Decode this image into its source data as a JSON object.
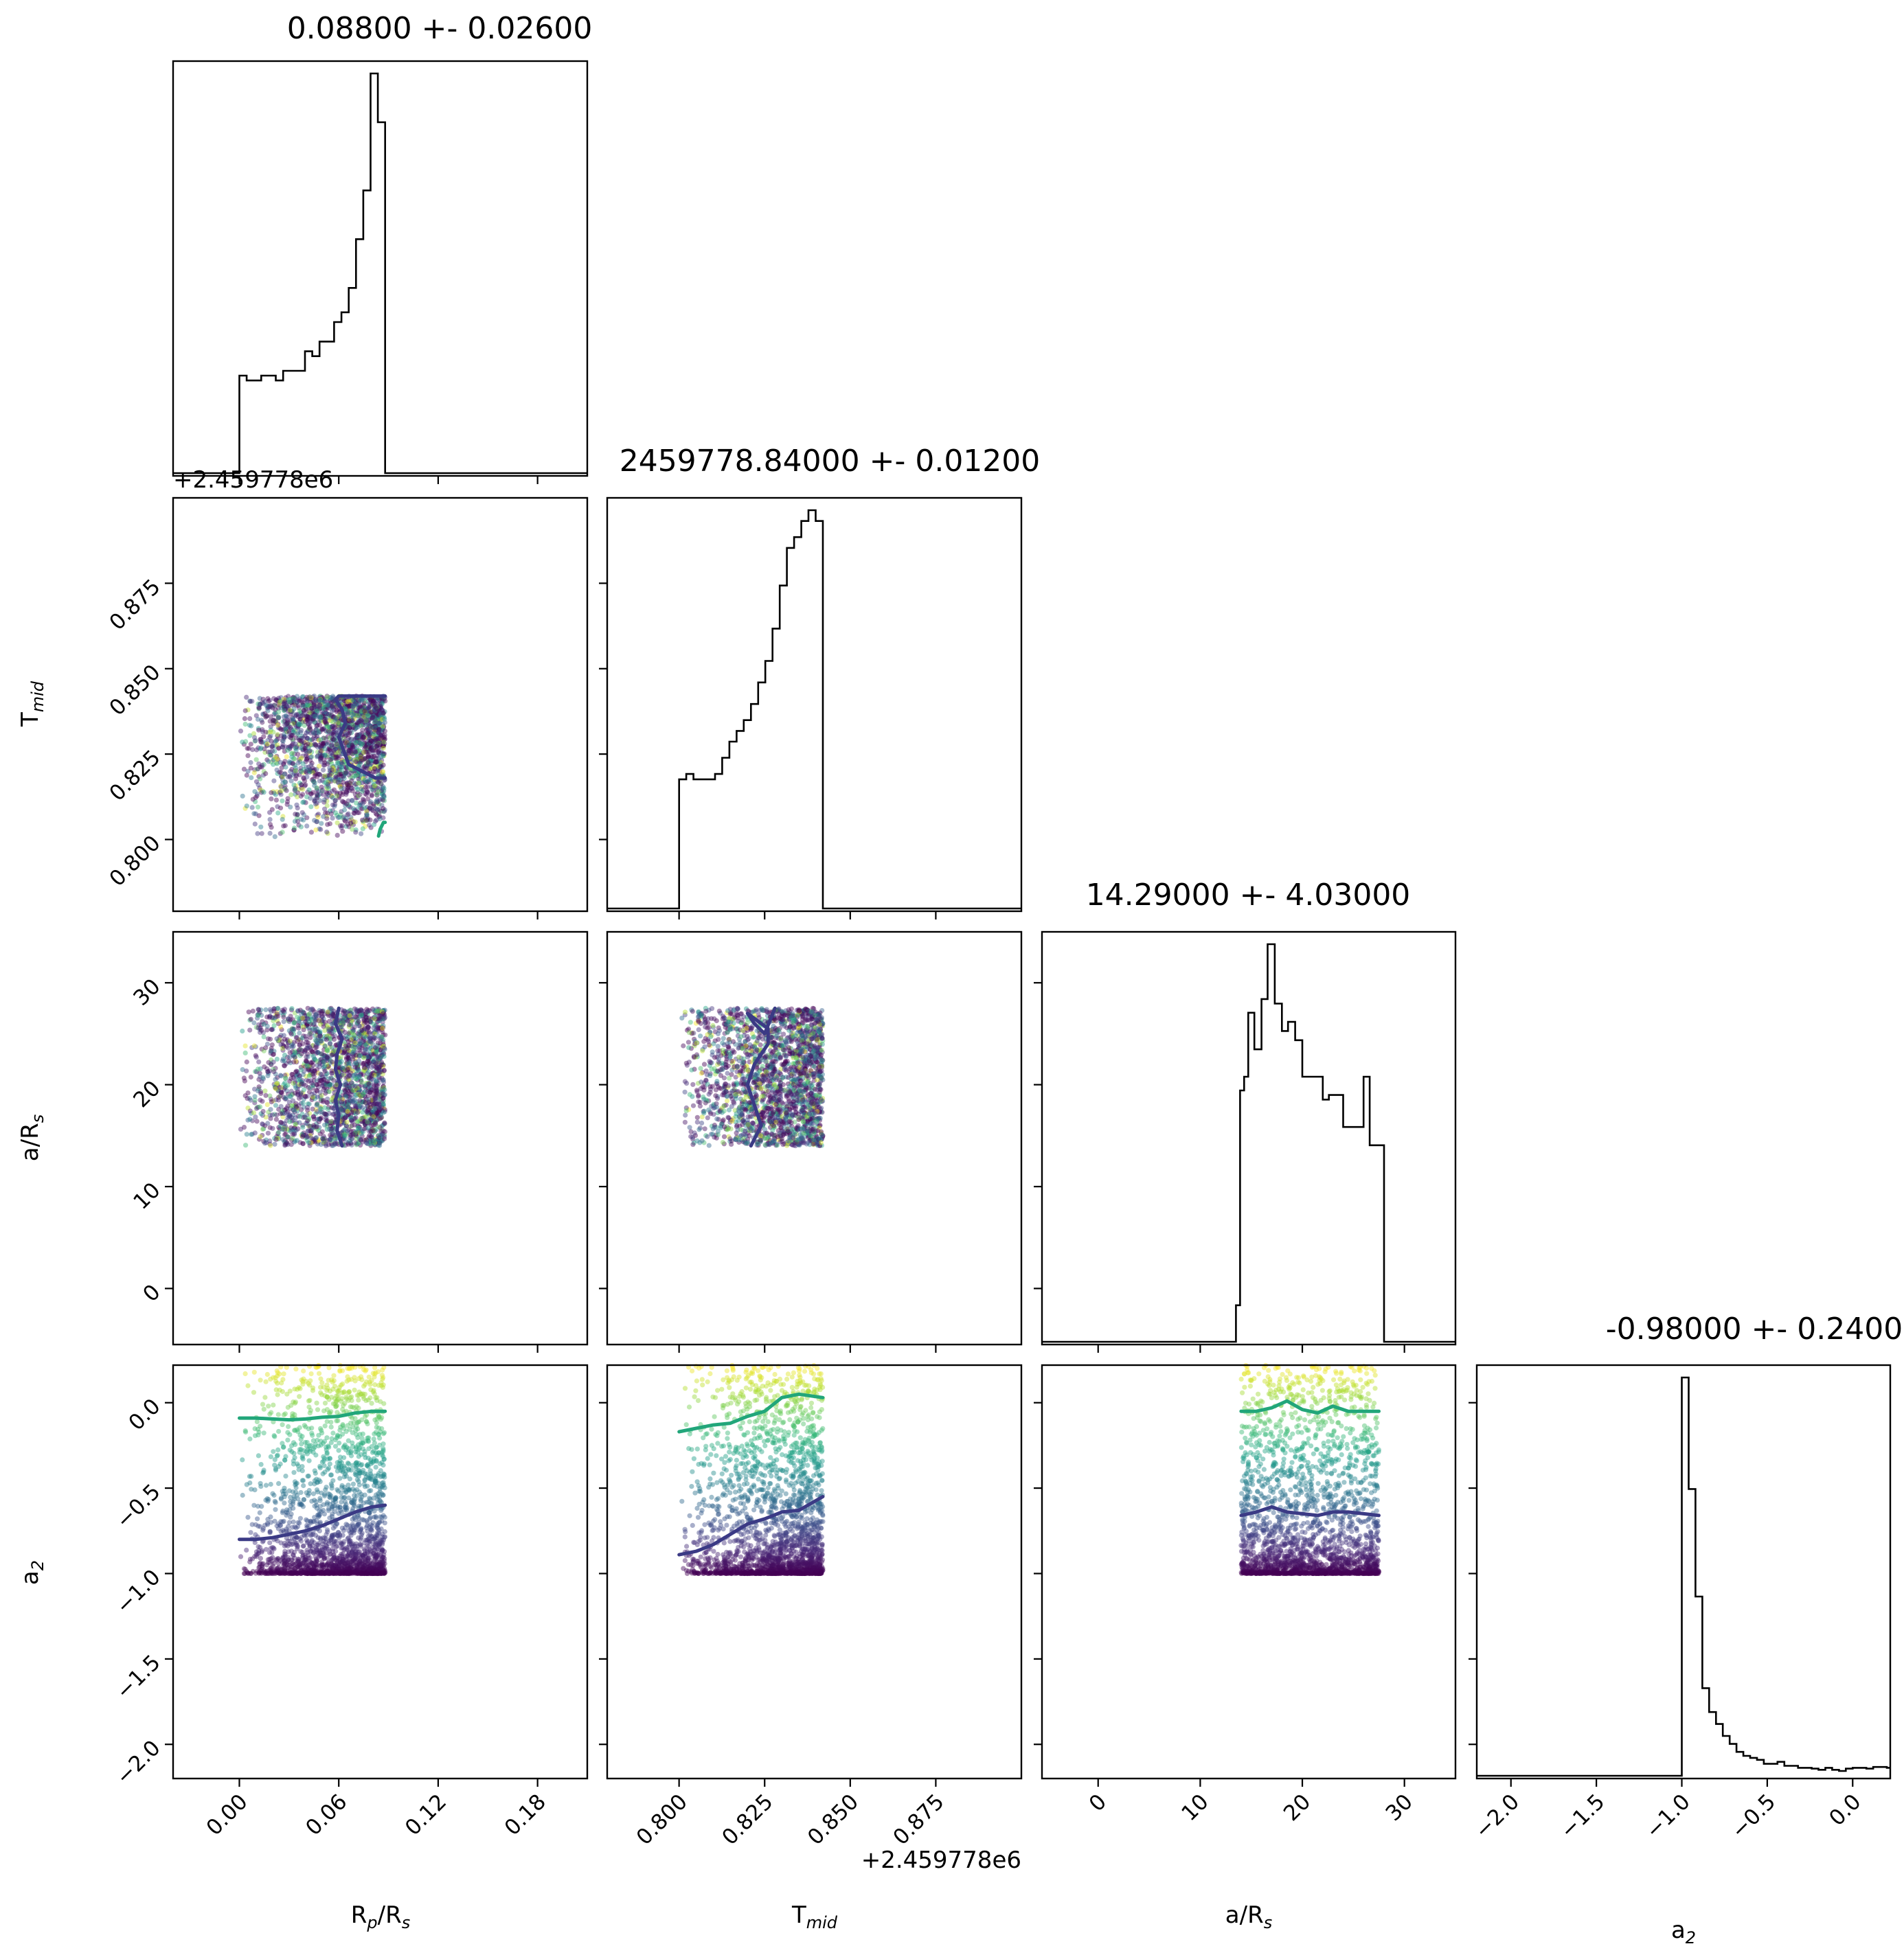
{
  "colors": {
    "frame": "#000000",
    "histogram": "#000000",
    "contour_inner": "#3b3a85",
    "contour_outer": "#21a67a",
    "colormap": "viridis"
  },
  "chart_data": {
    "type": "scatter",
    "layout": "corner-plot",
    "parameters": [
      {
        "label": "R$_p$/R$_s$",
        "label_main": "R",
        "label_sub": "p",
        "label_tail": "/R",
        "label_sub2": "s",
        "range": [
          -0.04,
          0.21
        ],
        "ticks": [
          0.0,
          0.06,
          0.12,
          0.18
        ],
        "tick_labels": [
          "0.00",
          "0.06",
          "0.12",
          "0.18"
        ],
        "sample_range": [
          0.0,
          0.088
        ],
        "title": "0.08800 +- 0.02600",
        "offset": ""
      },
      {
        "label": "T$_{mid}$",
        "label_main": "T",
        "label_sub": "mid",
        "label_tail": "",
        "label_sub2": "",
        "range": [
          0.779,
          0.9
        ],
        "ticks": [
          0.8,
          0.825,
          0.85,
          0.875
        ],
        "tick_labels": [
          "0.800",
          "0.825",
          "0.850",
          "0.875"
        ],
        "sample_range": [
          0.8,
          0.842
        ],
        "title": "2459778.84000 +- 0.01200",
        "offset": "+2.459778e6"
      },
      {
        "label": "a/R$_s$",
        "label_main": "a/R",
        "label_sub": "s",
        "label_tail": "",
        "label_sub2": "",
        "range": [
          -5.5,
          35
        ],
        "ticks": [
          0,
          10,
          20,
          30
        ],
        "tick_labels": [
          "0",
          "10",
          "20",
          "30"
        ],
        "sample_range": [
          14,
          27.5
        ],
        "title": "14.29000 +- 4.03000",
        "offset": ""
      },
      {
        "label": "$a_2$",
        "label_main": "a",
        "label_sub": "2",
        "label_tail": "",
        "label_sub2": "",
        "range": [
          -2.2,
          0.22
        ],
        "ticks": [
          -2.0,
          -1.5,
          -1.0,
          -0.5,
          0.0
        ],
        "tick_labels": [
          "−2.0",
          "−1.5",
          "−1.0",
          "−0.5",
          "0.0"
        ],
        "sample_range": [
          -1.0,
          0.22
        ],
        "title": "-0.98000 +- 0.24000",
        "offset": ""
      }
    ],
    "histograms": [
      {
        "parameter": 0,
        "bin_edges": [
          -0.04,
          0.0,
          0.0044,
          0.0088,
          0.0132,
          0.0176,
          0.022,
          0.0264,
          0.0308,
          0.0352,
          0.0396,
          0.044,
          0.0484,
          0.0528,
          0.0572,
          0.0616,
          0.066,
          0.0704,
          0.0748,
          0.0792,
          0.0836,
          0.088,
          0.21
        ],
        "counts": [
          0,
          0.2,
          0.19,
          0.19,
          0.2,
          0.2,
          0.19,
          0.21,
          0.21,
          0.21,
          0.25,
          0.24,
          0.27,
          0.27,
          0.31,
          0.33,
          0.38,
          0.48,
          0.58,
          0.82,
          0.72,
          0
        ]
      },
      {
        "parameter": 1,
        "bin_edges": [
          0.779,
          0.8,
          0.8021,
          0.8042,
          0.8063,
          0.8084,
          0.8105,
          0.8126,
          0.8147,
          0.8168,
          0.8189,
          0.821,
          0.8231,
          0.8252,
          0.8273,
          0.8294,
          0.8315,
          0.8336,
          0.8357,
          0.8378,
          0.8399,
          0.842,
          0.9
        ],
        "counts": [
          0,
          0.24,
          0.25,
          0.24,
          0.24,
          0.24,
          0.25,
          0.28,
          0.31,
          0.33,
          0.35,
          0.38,
          0.42,
          0.46,
          0.52,
          0.6,
          0.67,
          0.69,
          0.72,
          0.74,
          0.72,
          0
        ]
      },
      {
        "parameter": 2,
        "bin_edges": [
          -5.5,
          13.5,
          13.9,
          14.3,
          14.7,
          15.3,
          16.0,
          16.6,
          17.3,
          18.0,
          18.6,
          19.3,
          20.0,
          20.6,
          21.3,
          22.0,
          22.6,
          23.3,
          24.0,
          24.6,
          25.3,
          26.0,
          26.6,
          27.3,
          28.0,
          35
        ],
        "counts": [
          0,
          0.08,
          0.55,
          0.58,
          0.72,
          0.64,
          0.75,
          0.87,
          0.74,
          0.68,
          0.7,
          0.66,
          0.58,
          0.58,
          0.58,
          0.53,
          0.54,
          0.54,
          0.47,
          0.47,
          0.47,
          0.58,
          0.43,
          0.43,
          0
        ],
        "note": ""
      },
      {
        "parameter": 3,
        "bin_edges": [
          -2.2,
          -1.0,
          -0.96,
          -0.92,
          -0.88,
          -0.84,
          -0.8,
          -0.76,
          -0.72,
          -0.68,
          -0.64,
          -0.6,
          -0.56,
          -0.52,
          -0.48,
          -0.44,
          -0.4,
          -0.36,
          -0.32,
          -0.28,
          -0.24,
          -0.2,
          -0.16,
          -0.12,
          -0.08,
          -0.04,
          0.0,
          0.04,
          0.08,
          0.12,
          0.16,
          0.2,
          0.22
        ],
        "counts": [
          0.0,
          1.0,
          0.72,
          0.45,
          0.22,
          0.16,
          0.13,
          0.1,
          0.08,
          0.06,
          0.05,
          0.045,
          0.04,
          0.03,
          0.03,
          0.035,
          0.025,
          0.025,
          0.02,
          0.02,
          0.018,
          0.015,
          0.02,
          0.015,
          0.012,
          0.018,
          0.02,
          0.02,
          0.018,
          0.022,
          0.022,
          0.02
        ]
      }
    ],
    "contours": [
      {
        "row": 1,
        "col": 0,
        "level": "inner",
        "x": [
          0.088,
          0.082,
          0.074,
          0.066,
          0.063,
          0.06,
          0.064,
          0.062,
          0.058,
          0.06,
          0.088
        ],
        "y": [
          0.818,
          0.818,
          0.82,
          0.822,
          0.826,
          0.83,
          0.834,
          0.838,
          0.841,
          0.842,
          0.842
        ]
      },
      {
        "row": 1,
        "col": 0,
        "level": "outer",
        "x": [
          0.084,
          0.085,
          0.086,
          0.087,
          0.088
        ],
        "y": [
          0.801,
          0.803,
          0.804,
          0.805,
          0.805
        ]
      },
      {
        "row": 2,
        "col": 0,
        "level": "inner",
        "x": [
          0.06,
          0.058,
          0.062,
          0.059,
          0.058,
          0.061,
          0.058,
          0.06,
          0.059,
          0.062
        ],
        "y": [
          27.5,
          26,
          24.5,
          23,
          21.5,
          20,
          18.5,
          17,
          15.5,
          14
        ]
      },
      {
        "row": 2,
        "col": 1,
        "level": "inner",
        "x": [
          0.821,
          0.824,
          0.822,
          0.82,
          0.822,
          0.826,
          0.826,
          0.822,
          0.82,
          0.822,
          0.825,
          0.828
        ],
        "y": [
          14,
          16,
          18,
          20,
          22,
          24,
          25.5,
          26.5,
          27,
          26,
          25,
          27.5
        ]
      },
      {
        "row": 3,
        "col": 0,
        "level": "inner",
        "x": [
          0.0,
          0.01,
          0.02,
          0.03,
          0.04,
          0.05,
          0.06,
          0.07,
          0.08,
          0.088
        ],
        "y": [
          -0.8,
          -0.8,
          -0.79,
          -0.77,
          -0.75,
          -0.72,
          -0.68,
          -0.64,
          -0.61,
          -0.6
        ]
      },
      {
        "row": 3,
        "col": 0,
        "level": "outer",
        "x": [
          0.0,
          0.01,
          0.02,
          0.03,
          0.04,
          0.05,
          0.06,
          0.07,
          0.08,
          0.088
        ],
        "y": [
          -0.09,
          -0.09,
          -0.095,
          -0.1,
          -0.095,
          -0.085,
          -0.08,
          -0.06,
          -0.05,
          -0.05
        ]
      },
      {
        "row": 3,
        "col": 1,
        "level": "inner",
        "x": [
          0.8,
          0.805,
          0.81,
          0.815,
          0.82,
          0.825,
          0.83,
          0.835,
          0.842
        ],
        "y": [
          -0.89,
          -0.87,
          -0.83,
          -0.77,
          -0.71,
          -0.68,
          -0.64,
          -0.63,
          -0.55
        ]
      },
      {
        "row": 3,
        "col": 1,
        "level": "outer",
        "x": [
          0.8,
          0.805,
          0.81,
          0.815,
          0.82,
          0.825,
          0.83,
          0.835,
          0.842
        ],
        "y": [
          -0.17,
          -0.15,
          -0.13,
          -0.12,
          -0.08,
          -0.05,
          0.03,
          0.05,
          0.03
        ]
      },
      {
        "row": 3,
        "col": 2,
        "level": "inner",
        "x": [
          14,
          15.5,
          17,
          18.5,
          20,
          21.5,
          23,
          24.5,
          26,
          27.5
        ],
        "y": [
          -0.66,
          -0.64,
          -0.61,
          -0.64,
          -0.65,
          -0.66,
          -0.64,
          -0.64,
          -0.65,
          -0.66
        ]
      },
      {
        "row": 3,
        "col": 2,
        "level": "outer",
        "x": [
          14,
          15.5,
          17,
          18.5,
          20,
          21.5,
          23,
          24.5,
          26,
          27.5
        ],
        "y": [
          -0.05,
          -0.05,
          -0.03,
          0.01,
          -0.04,
          -0.06,
          -0.02,
          -0.05,
          -0.05,
          -0.05
        ]
      }
    ],
    "scatter": {
      "colormap": "viridis",
      "color_by": "a_2",
      "point_alpha": 0.45,
      "approx_points_per_panel": 2200
    },
    "grid": false,
    "legend": "none"
  }
}
